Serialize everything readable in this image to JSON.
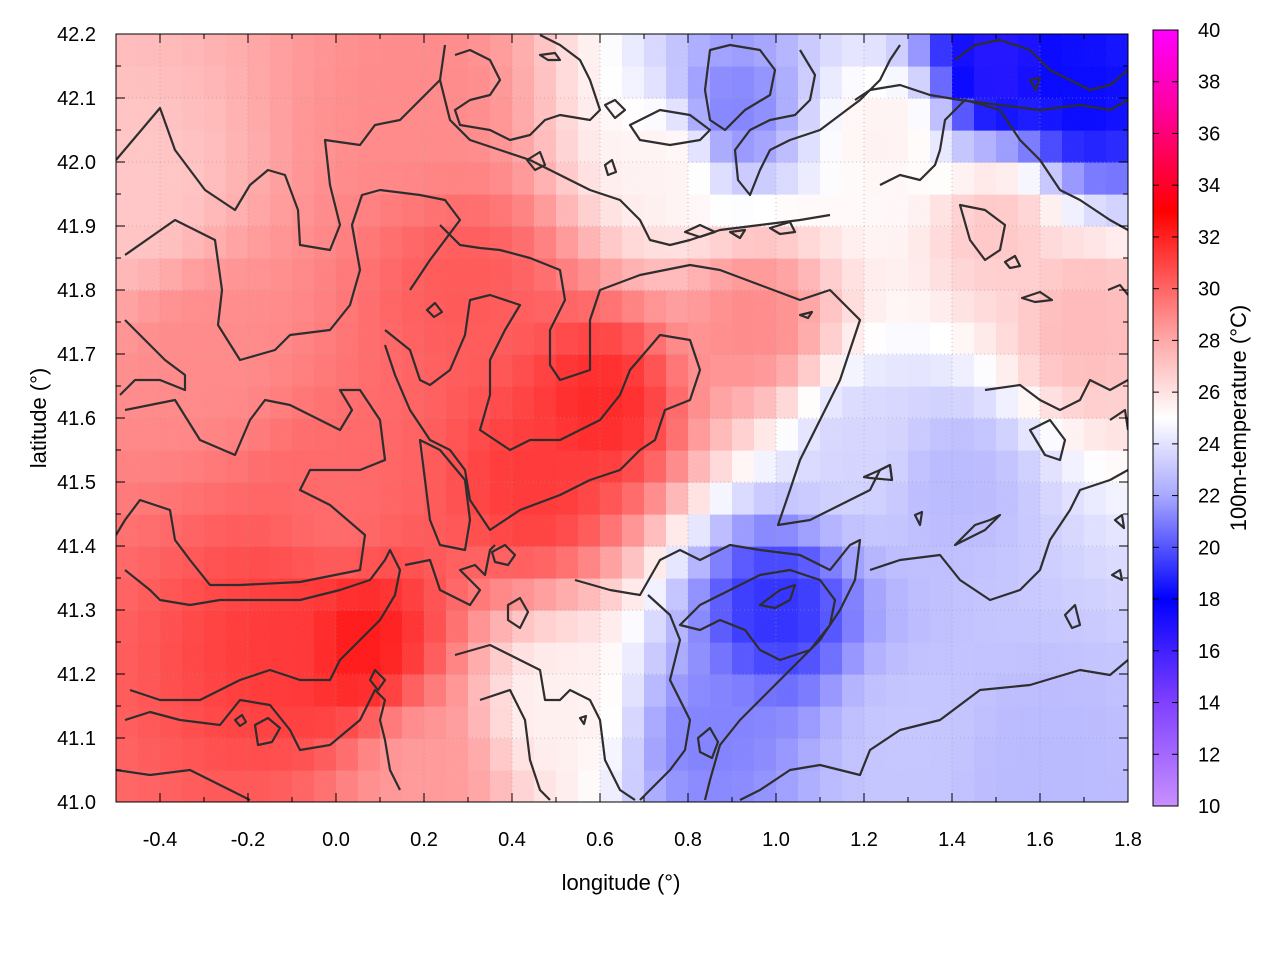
{
  "chart_data": {
    "type": "heatmap",
    "xlabel": "longitude (°)",
    "ylabel": "latitude (°)",
    "colorbar_label": "100m-temperature (°C)",
    "xlim": [
      -0.5,
      1.8
    ],
    "ylim": [
      41.0,
      42.2
    ],
    "x_ticks": [
      "-0.4",
      "-0.2",
      "0.0",
      "0.2",
      "0.4",
      "0.6",
      "0.8",
      "1.0",
      "1.2",
      "1.4",
      "1.6",
      "1.8"
    ],
    "y_ticks": [
      "41.0",
      "41.1",
      "41.2",
      "41.3",
      "41.4",
      "41.5",
      "41.6",
      "41.7",
      "41.8",
      "41.9",
      "42.0",
      "42.1",
      "42.2"
    ],
    "colorbar_range": [
      10,
      40
    ],
    "colorbar_ticks": [
      "10",
      "12",
      "14",
      "16",
      "18",
      "20",
      "22",
      "24",
      "26",
      "28",
      "30",
      "32",
      "34",
      "36",
      "38",
      "40"
    ],
    "colormap": [
      {
        "value": 10,
        "color": "#c890ff"
      },
      {
        "value": 14,
        "color": "#8040ff"
      },
      {
        "value": 18,
        "color": "#0000ff"
      },
      {
        "value": 22,
        "color": "#a8a8ff"
      },
      {
        "value": 25,
        "color": "#ffffff"
      },
      {
        "value": 28,
        "color": "#ffa8a8"
      },
      {
        "value": 33,
        "color": "#ff0000"
      },
      {
        "value": 37,
        "color": "#ff00a0"
      },
      {
        "value": 40,
        "color": "#ff00ff"
      }
    ],
    "grid": true,
    "contours": true,
    "field_samples": [
      {
        "lon": -0.45,
        "lat": 41.95,
        "value": 27
      },
      {
        "lon": -0.3,
        "lat": 41.7,
        "value": 29
      },
      {
        "lon": -0.1,
        "lat": 41.25,
        "value": 31.5
      },
      {
        "lon": 0.05,
        "lat": 41.25,
        "value": 32.5
      },
      {
        "lon": 0.0,
        "lat": 41.45,
        "value": 30
      },
      {
        "lon": 0.3,
        "lat": 41.8,
        "value": 30.5
      },
      {
        "lon": 0.6,
        "lat": 41.62,
        "value": 32
      },
      {
        "lon": 0.45,
        "lat": 41.5,
        "value": 31.5
      },
      {
        "lon": 0.2,
        "lat": 42.1,
        "value": 29
      },
      {
        "lon": 0.75,
        "lat": 42.0,
        "value": 25.5
      },
      {
        "lon": 0.9,
        "lat": 42.08,
        "value": 21
      },
      {
        "lon": 1.5,
        "lat": 42.15,
        "value": 17
      },
      {
        "lon": 1.7,
        "lat": 42.1,
        "value": 18
      },
      {
        "lon": 1.25,
        "lat": 42.05,
        "value": 25.5
      },
      {
        "lon": 1.5,
        "lat": 41.9,
        "value": 27
      },
      {
        "lon": 1.4,
        "lat": 41.5,
        "value": 22.5
      },
      {
        "lon": 1.2,
        "lat": 41.55,
        "value": 23.5
      },
      {
        "lon": 1.0,
        "lat": 41.3,
        "value": 19
      },
      {
        "lon": 0.85,
        "lat": 41.1,
        "value": 21
      },
      {
        "lon": 1.3,
        "lat": 41.1,
        "value": 23
      },
      {
        "lon": 1.6,
        "lat": 41.05,
        "value": 22.5
      },
      {
        "lon": 0.5,
        "lat": 41.15,
        "value": 25.5
      },
      {
        "lon": 0.2,
        "lat": 41.05,
        "value": 28.5
      },
      {
        "lon": 1.7,
        "lat": 41.75,
        "value": 27.5
      },
      {
        "lon": 0.95,
        "lat": 41.75,
        "value": 29
      }
    ]
  }
}
